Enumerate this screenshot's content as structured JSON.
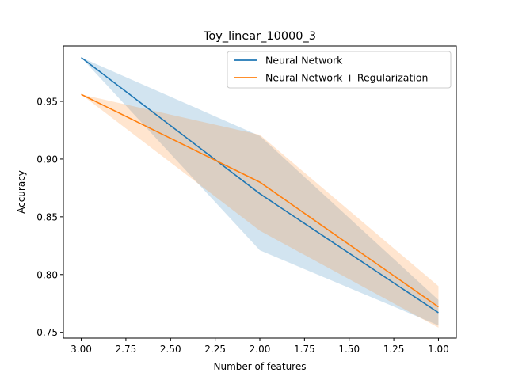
{
  "chart_data": {
    "type": "line",
    "title": "Toy_linear_10000_3",
    "xlabel": "Number of features",
    "ylabel": "Accuracy",
    "x": [
      3.0,
      2.0,
      1.0
    ],
    "xlim": [
      3.1,
      0.9
    ],
    "ylim": [
      0.745,
      0.998
    ],
    "xticks": [
      "3.00",
      "2.75",
      "2.50",
      "2.25",
      "2.00",
      "1.75",
      "1.50",
      "1.25",
      "1.00"
    ],
    "xtick_values": [
      3.0,
      2.75,
      2.5,
      2.25,
      2.0,
      1.75,
      1.5,
      1.25,
      1.0
    ],
    "yticks": [
      "0.75",
      "0.80",
      "0.85",
      "0.90",
      "0.95"
    ],
    "ytick_values": [
      0.75,
      0.8,
      0.85,
      0.9,
      0.95
    ],
    "grid": false,
    "legend_position": "top-right",
    "series": [
      {
        "name": "Neural Network",
        "color": "#1f77b4",
        "values": [
          0.988,
          0.87,
          0.767
        ],
        "lower": [
          0.988,
          0.821,
          0.756
        ],
        "upper": [
          0.988,
          0.92,
          0.778
        ]
      },
      {
        "name": "Neural Network + Regularization",
        "color": "#ff7f0e",
        "values": [
          0.956,
          0.88,
          0.772
        ],
        "lower": [
          0.956,
          0.838,
          0.754
        ],
        "upper": [
          0.956,
          0.921,
          0.79
        ]
      }
    ]
  }
}
